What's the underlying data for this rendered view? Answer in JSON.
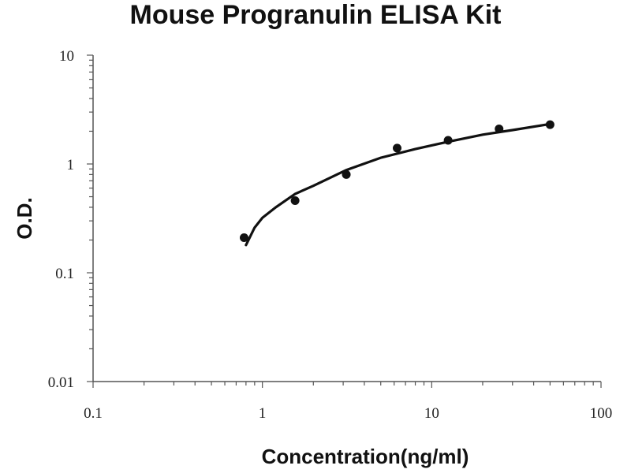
{
  "chart_data": {
    "type": "scatter",
    "title": "Mouse Progranulin  ELISA Kit",
    "xlabel": "Concentration(ng/ml)",
    "ylabel": "O.D.",
    "x_scale": "log",
    "y_scale": "log",
    "xlim": [
      0.1,
      100
    ],
    "ylim": [
      0.01,
      10
    ],
    "x_ticks": [
      "0.1",
      "1",
      "10",
      "100"
    ],
    "y_ticks": [
      "0.01",
      "0.1",
      "1",
      "10"
    ],
    "grid": false,
    "legend": "none",
    "series": [
      {
        "x": [
          0.78,
          1.56,
          3.13,
          6.25,
          12.5,
          25,
          50
        ],
        "y": [
          0.21,
          0.46,
          0.8,
          1.4,
          1.65,
          2.1,
          2.3
        ]
      }
    ],
    "fit_curve": {
      "x": [
        0.8,
        0.9,
        1.0,
        1.2,
        1.56,
        2.0,
        3.13,
        5.0,
        8.0,
        12.5,
        20.0,
        30.0,
        50.0
      ],
      "y": [
        0.18,
        0.26,
        0.32,
        0.4,
        0.53,
        0.63,
        0.88,
        1.14,
        1.37,
        1.6,
        1.86,
        2.05,
        2.33
      ]
    },
    "colors": {
      "marker": "#111111",
      "line": "#111111",
      "axis": "#555555"
    }
  }
}
